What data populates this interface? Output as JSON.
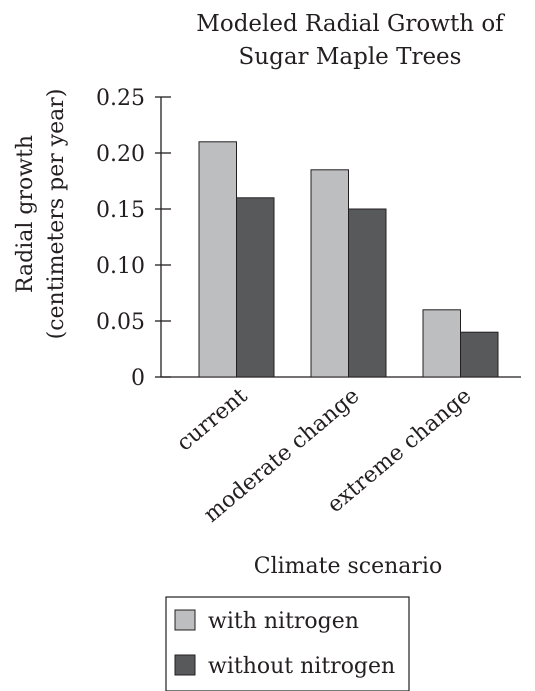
{
  "chart_data": {
    "type": "bar",
    "title_lines": [
      "Modeled Radial Growth of",
      "Sugar Maple Trees"
    ],
    "xlabel": "Climate scenario",
    "ylabel_lines": [
      "Radial growth",
      "(centimeters per year)"
    ],
    "categories": [
      "current",
      "moderate change",
      "extreme change"
    ],
    "series": [
      {
        "name": "with nitrogen",
        "values": [
          0.21,
          0.185,
          0.06
        ],
        "color": "#bcbec0"
      },
      {
        "name": "without nitrogen",
        "values": [
          0.16,
          0.15,
          0.04
        ],
        "color": "#58595b"
      }
    ],
    "ylim": [
      0,
      0.25
    ],
    "yticks": [
      0,
      0.05,
      0.1,
      0.15,
      0.2,
      0.25
    ],
    "ytick_labels": [
      "0",
      "0.05",
      "0.10",
      "0.15",
      "0.20",
      "0.25"
    ],
    "grid": false,
    "legend_position": "bottom"
  }
}
